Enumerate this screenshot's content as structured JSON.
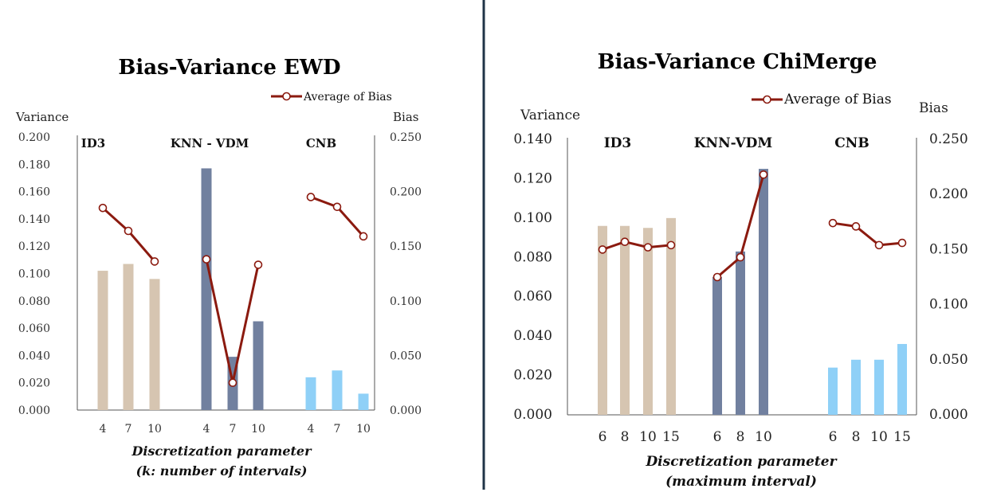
{
  "chart_data": [
    {
      "type": "bar",
      "title": "Bias-Variance EWD",
      "ylabel": "Variance",
      "y2label": "Bias",
      "xlabel_line1": "Discretization parameter",
      "xlabel_line2": "(k: number of intervals)",
      "ylim": [
        0,
        0.2
      ],
      "y2lim": [
        0,
        0.25
      ],
      "yticks": [
        "0.000",
        "0.020",
        "0.040",
        "0.060",
        "0.080",
        "0.100",
        "0.120",
        "0.140",
        "0.160",
        "0.180",
        "0.200"
      ],
      "y2ticks": [
        "0.000",
        "0.050",
        "0.100",
        "0.150",
        "0.200",
        "0.250"
      ],
      "legend": "Average of Bias",
      "groups": [
        {
          "name": "ID3",
          "color": "#d6c5b1",
          "categories": [
            "4",
            "7",
            "10"
          ],
          "variance": [
            0.102,
            0.107,
            0.096
          ],
          "bias": [
            0.185,
            0.164,
            0.136
          ]
        },
        {
          "name": "KNN - VDM",
          "color": "#71809f",
          "categories": [
            "4",
            "7",
            "10"
          ],
          "variance": [
            0.177,
            0.039,
            0.065
          ],
          "bias": [
            0.138,
            0.025,
            0.133
          ]
        },
        {
          "name": "CNB",
          "color": "#8fd0f7",
          "categories": [
            "4",
            "7",
            "10"
          ],
          "variance": [
            0.024,
            0.029,
            0.012
          ],
          "bias": [
            0.195,
            0.186,
            0.159
          ]
        }
      ]
    },
    {
      "type": "bar",
      "title": "Bias-Variance ChiMerge",
      "ylabel": "Variance",
      "y2label": "Bias",
      "xlabel_line1": "Discretization parameter",
      "xlabel_line2": "(maximum interval)",
      "ylim": [
        0,
        0.14
      ],
      "y2lim": [
        0,
        0.25
      ],
      "yticks": [
        "0.000",
        "0.020",
        "0.040",
        "0.060",
        "0.080",
        "0.100",
        "0.120",
        "0.140"
      ],
      "y2ticks": [
        "0.000",
        "0.050",
        "0.100",
        "0.150",
        "0.200",
        "0.250"
      ],
      "legend": "Average of Bias",
      "groups": [
        {
          "name": "ID3",
          "color": "#d6c5b1",
          "categories": [
            "6",
            "8",
            "10",
            "15"
          ],
          "variance": [
            0.096,
            0.096,
            0.095,
            0.1
          ],
          "bias": [
            0.15,
            0.157,
            0.152,
            0.154
          ]
        },
        {
          "name": "KNN-VDM",
          "color": "#71809f",
          "categories": [
            "6",
            "8",
            "10"
          ],
          "variance": [
            0.07,
            0.083,
            0.125
          ],
          "bias": [
            0.125,
            0.143,
            0.218
          ]
        },
        {
          "name": "CNB",
          "color": "#8fd0f7",
          "categories": [
            "6",
            "8",
            "10",
            "15"
          ],
          "variance": [
            0.024,
            0.028,
            0.028,
            0.036
          ],
          "bias": [
            0.174,
            0.171,
            0.154,
            0.156
          ]
        }
      ]
    }
  ],
  "colors": {
    "bias_line": "#8b1a0f",
    "divider": "#1f3447"
  }
}
